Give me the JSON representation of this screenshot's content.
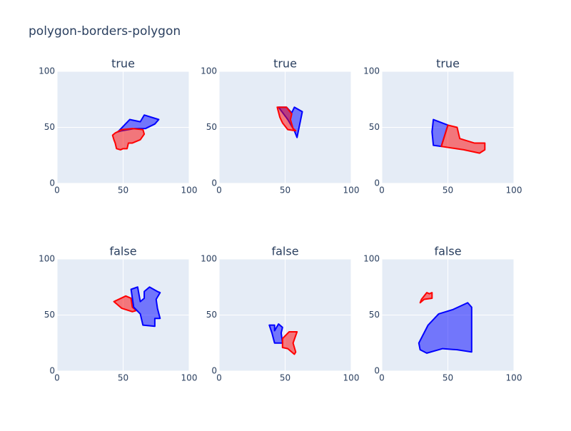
{
  "title": "polygon-borders-polygon",
  "chart_data": [
    {
      "type": "polygon",
      "title": "true",
      "xlim": [
        0,
        100
      ],
      "ylim": [
        0,
        100
      ],
      "xticks": [
        0,
        50,
        100
      ],
      "yticks": [
        0,
        50,
        100
      ],
      "grid": true,
      "series": [
        {
          "color": "blue",
          "x": [
            46,
            55,
            63,
            66,
            77,
            74,
            67,
            59,
            49
          ],
          "values": [
            46,
            57,
            55,
            61,
            57,
            53,
            49,
            49,
            47
          ]
        },
        {
          "color": "red",
          "x": [
            44,
            49,
            57,
            65,
            66,
            63,
            57,
            54,
            53,
            50,
            48,
            45,
            44,
            43,
            42
          ],
          "values": [
            45,
            48,
            49,
            48,
            44,
            39,
            36,
            36,
            31,
            31,
            30,
            31,
            36,
            39,
            43
          ]
        }
      ]
    },
    {
      "type": "polygon",
      "title": "true",
      "xlim": [
        0,
        100
      ],
      "ylim": [
        0,
        100
      ],
      "xticks": [
        0,
        50,
        100
      ],
      "yticks": [
        0,
        50,
        100
      ],
      "grid": true,
      "series": [
        {
          "color": "blue",
          "x": [
            45,
            51,
            55,
            57,
            63,
            59,
            57,
            52
          ],
          "values": [
            68,
            68,
            63,
            68,
            64,
            41,
            47,
            57
          ]
        },
        {
          "color": "red",
          "x": [
            44,
            51,
            55,
            54,
            56,
            58,
            52,
            48,
            46
          ],
          "values": [
            68,
            68,
            62,
            57,
            49,
            47,
            48,
            54,
            59
          ]
        }
      ]
    },
    {
      "type": "polygon",
      "title": "true",
      "xlim": [
        0,
        100
      ],
      "ylim": [
        0,
        100
      ],
      "xticks": [
        0,
        50,
        100
      ],
      "yticks": [
        0,
        50,
        100
      ],
      "grid": true,
      "series": [
        {
          "color": "blue",
          "x": [
            39,
            50,
            45,
            39,
            38
          ],
          "values": [
            57,
            52,
            33,
            34,
            46
          ]
        },
        {
          "color": "red",
          "x": [
            50,
            57,
            59,
            70,
            78,
            78,
            74,
            62,
            45
          ],
          "values": [
            52,
            50,
            40,
            36,
            36,
            30,
            27,
            30,
            33
          ]
        }
      ]
    },
    {
      "type": "polygon",
      "title": "false",
      "xlim": [
        0,
        100
      ],
      "ylim": [
        0,
        100
      ],
      "xticks": [
        0,
        50,
        100
      ],
      "yticks": [
        0,
        50,
        100
      ],
      "grid": true,
      "series": [
        {
          "color": "red",
          "x": [
            43,
            52,
            56,
            57,
            60,
            57,
            49
          ],
          "values": [
            62,
            67,
            65,
            57,
            54,
            53,
            56
          ]
        },
        {
          "color": "blue",
          "x": [
            56,
            61,
            63,
            66,
            66,
            70,
            76,
            78,
            75,
            76,
            78,
            74,
            74,
            65,
            63,
            58
          ],
          "values": [
            73,
            75,
            62,
            65,
            71,
            75,
            71,
            70,
            64,
            56,
            47,
            47,
            40,
            41,
            51,
            57
          ]
        }
      ]
    },
    {
      "type": "polygon",
      "title": "false",
      "xlim": [
        0,
        100
      ],
      "ylim": [
        0,
        100
      ],
      "xticks": [
        0,
        50,
        100
      ],
      "yticks": [
        0,
        50,
        100
      ],
      "grid": true,
      "series": [
        {
          "color": "blue",
          "x": [
            38,
            42,
            42,
            45,
            48,
            47,
            48,
            42,
            40
          ],
          "values": [
            41,
            41,
            36,
            42,
            39,
            34,
            25,
            25,
            34
          ]
        },
        {
          "color": "red",
          "x": [
            48,
            53,
            59,
            56,
            58,
            57,
            52,
            48
          ],
          "values": [
            29,
            35,
            35,
            25,
            17,
            15,
            20,
            21
          ]
        }
      ]
    },
    {
      "type": "polygon",
      "title": "false",
      "xlim": [
        0,
        100
      ],
      "ylim": [
        0,
        100
      ],
      "xticks": [
        0,
        50,
        100
      ],
      "yticks": [
        0,
        50,
        100
      ],
      "grid": true,
      "series": [
        {
          "color": "red",
          "x": [
            30,
            34,
            36,
            38,
            38,
            32,
            29
          ],
          "values": [
            64,
            70,
            69,
            70,
            65,
            64,
            61
          ]
        },
        {
          "color": "blue",
          "x": [
            28,
            35,
            43,
            54,
            65,
            68,
            68,
            57,
            46,
            34,
            29
          ],
          "values": [
            25,
            41,
            51,
            55,
            61,
            57,
            17,
            19,
            20,
            16,
            19
          ]
        }
      ]
    }
  ]
}
